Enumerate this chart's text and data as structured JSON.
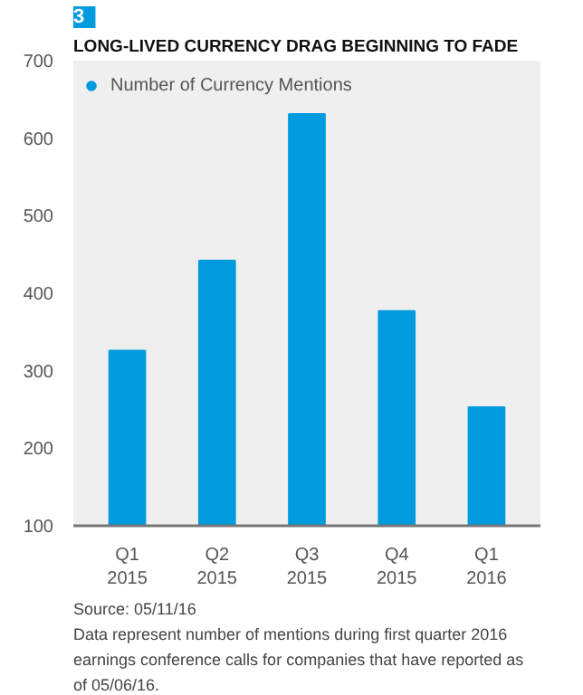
{
  "chart_data": {
    "type": "bar",
    "title": "LONG-LIVED CURRENCY DRAG BEGINNING TO FADE",
    "categories": [
      "Q1\n2015",
      "Q2\n2015",
      "Q3\n2015",
      "Q4\n2015",
      "Q1\n2016"
    ],
    "series": [
      {
        "name": "Number of Currency Mentions",
        "color": "#009ade",
        "values": [
          326,
          442,
          631,
          377,
          253
        ]
      }
    ],
    "ylim": [
      100,
      700
    ],
    "yticks": [
      100,
      200,
      300,
      400,
      500,
      600,
      700
    ],
    "grid": false,
    "legend": "top left",
    "annotations": [
      "3",
      "Source: 05/11/16",
      "Data represent number of mentions during first quarter 2016 earnings conference calls for companies that have reported as of 05/06/16."
    ]
  }
}
